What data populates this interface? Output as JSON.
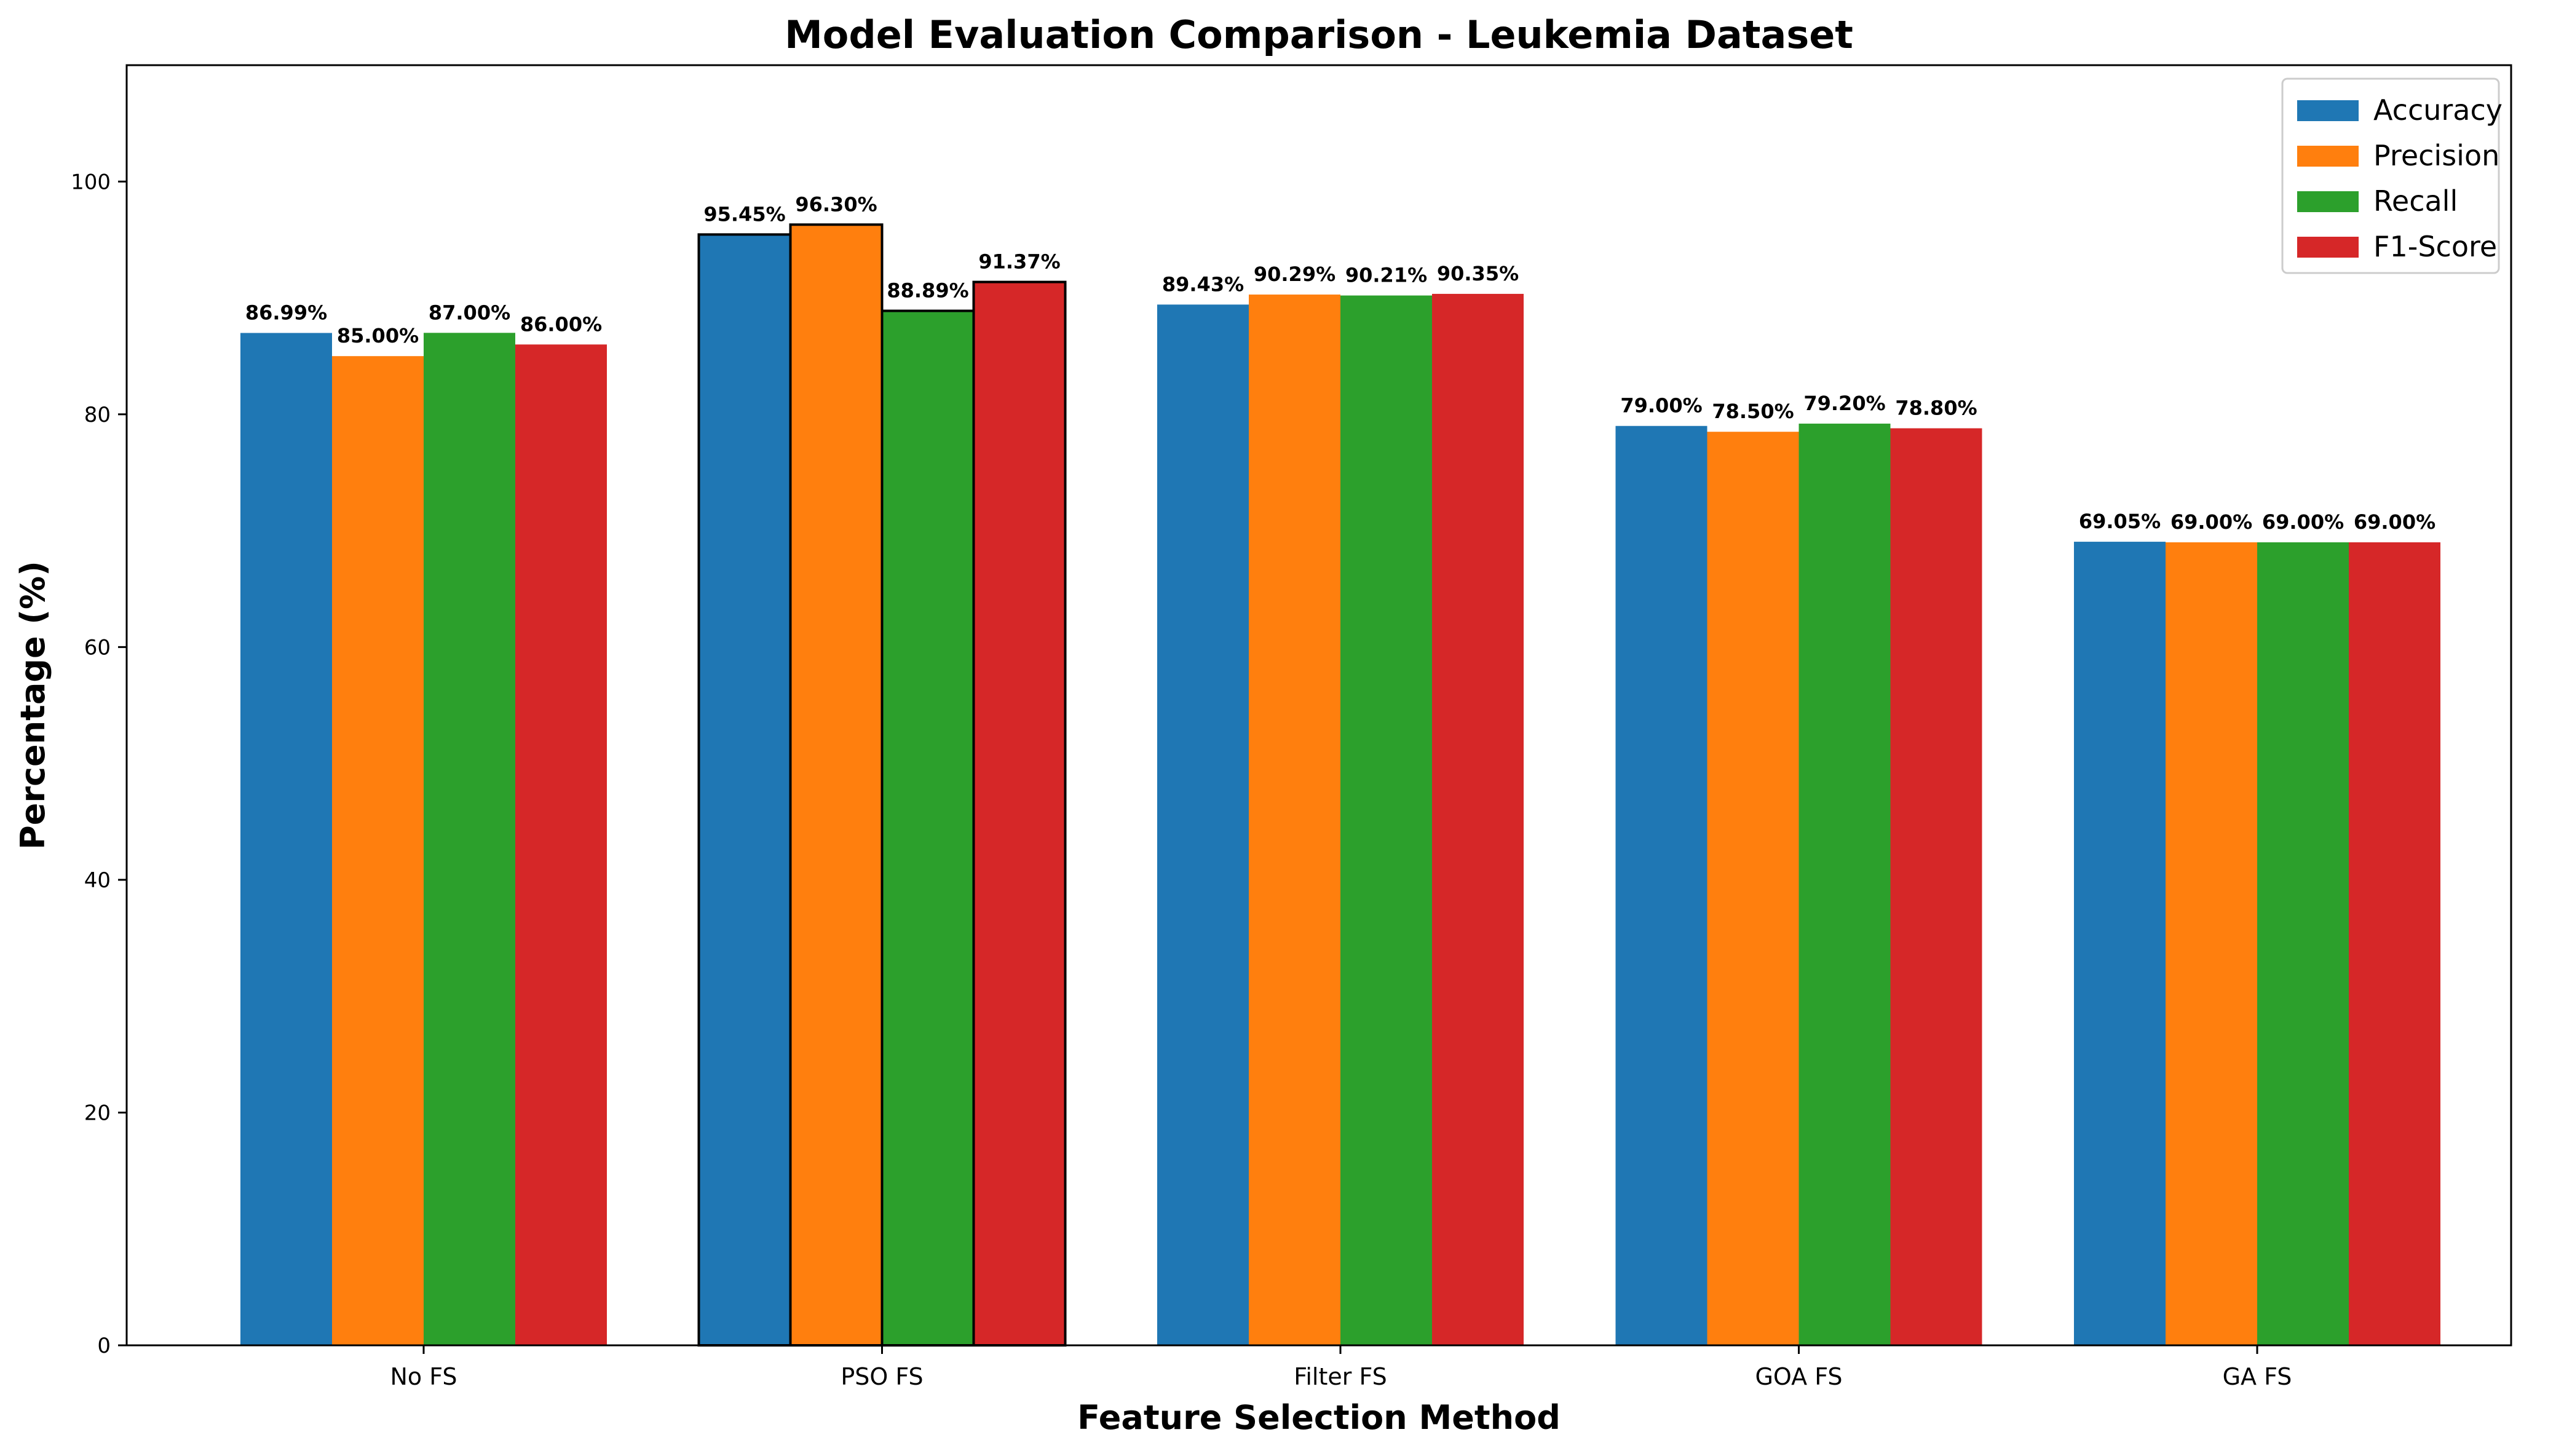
{
  "chart_data": {
    "type": "bar",
    "title": "Model Evaluation Comparison - Leukemia Dataset",
    "xlabel": "Feature Selection Method",
    "ylabel": "Percentage (%)",
    "categories": [
      "No FS",
      "PSO FS",
      "Filter FS",
      "GOA FS",
      "GA FS"
    ],
    "series": [
      {
        "name": "Accuracy",
        "color": "#1f77b4",
        "values": [
          86.99,
          95.45,
          89.43,
          79.0,
          69.05
        ]
      },
      {
        "name": "Precision",
        "color": "#ff7f0e",
        "values": [
          85.0,
          96.3,
          90.29,
          78.5,
          69.0
        ]
      },
      {
        "name": "Recall",
        "color": "#2ca02c",
        "values": [
          87.0,
          88.89,
          90.21,
          79.2,
          69.0
        ]
      },
      {
        "name": "F1-Score",
        "color": "#d62728",
        "values": [
          86.0,
          91.37,
          90.35,
          78.8,
          69.0
        ]
      }
    ],
    "data_labels": [
      [
        "86.99%",
        "95.45%",
        "89.43%",
        "79.00%",
        "69.05%"
      ],
      [
        "85.00%",
        "96.30%",
        "90.29%",
        "78.50%",
        "69.00%"
      ],
      [
        "87.00%",
        "88.89%",
        "90.21%",
        "79.20%",
        "69.00%"
      ],
      [
        "86.00%",
        "91.37%",
        "90.35%",
        "78.80%",
        "69.00%"
      ]
    ],
    "highlighted_category": "PSO FS",
    "ylim": [
      0,
      110
    ],
    "yticks": [
      "0",
      "20",
      "40",
      "60",
      "80",
      "100"
    ],
    "grid": false,
    "legend_position": "top-right"
  }
}
